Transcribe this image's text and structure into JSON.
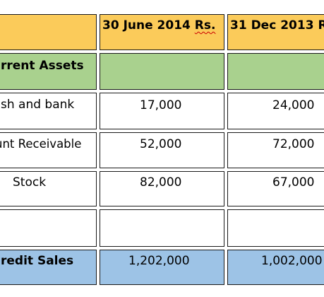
{
  "table": {
    "header": {
      "label_col": "",
      "col1": "30 June 2014",
      "col1_unit": "Rs.",
      "col2": "31 Dec 2013 R"
    },
    "rows": [
      {
        "label": "rrent Assets",
        "col1": "",
        "col2": "",
        "style": "section"
      },
      {
        "label": "sh and bank",
        "col1": "17,000",
        "col2": "24,000",
        "style": "data"
      },
      {
        "label": "unt Receivable",
        "col1": "52,000",
        "col2": "72,000",
        "style": "data"
      },
      {
        "label": "Stock",
        "col1": "82,000",
        "col2": "67,000",
        "style": "data"
      },
      {
        "label": "",
        "col1": "",
        "col2": "",
        "style": "empty"
      },
      {
        "label": "redit Sales",
        "col1": "1,202,000",
        "col2": "1,002,000",
        "style": "total"
      }
    ]
  },
  "colors": {
    "header": "#fbcb5a",
    "section": "#a9d18e",
    "total": "#9dc3e6"
  }
}
